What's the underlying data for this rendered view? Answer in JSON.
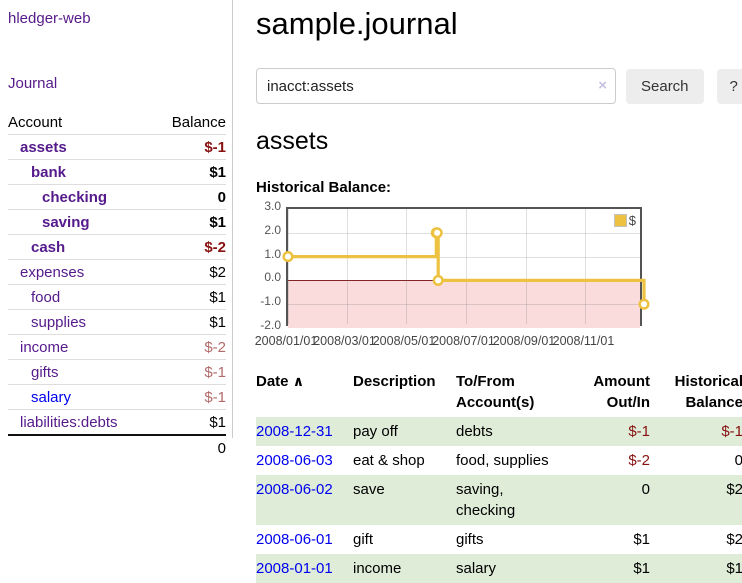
{
  "app": {
    "brand": "hledger-web",
    "nav": {
      "journal": "Journal"
    }
  },
  "sidebar": {
    "header": {
      "account": "Account",
      "balance": "Balance"
    },
    "accounts": [
      {
        "name": "assets",
        "balance": "$-1"
      },
      {
        "name": "bank",
        "balance": "$1"
      },
      {
        "name": "checking",
        "balance": "0"
      },
      {
        "name": "saving",
        "balance": "$1"
      },
      {
        "name": "cash",
        "balance": "$-2"
      },
      {
        "name": "expenses",
        "balance": "$2"
      },
      {
        "name": "food",
        "balance": "$1"
      },
      {
        "name": "supplies",
        "balance": "$1"
      },
      {
        "name": "income",
        "balance": "$-2"
      },
      {
        "name": "gifts",
        "balance": "$-1"
      },
      {
        "name": "salary",
        "balance": "$-1"
      },
      {
        "name": "liabilities:debts",
        "balance": "$1"
      }
    ],
    "total": "0"
  },
  "header": {
    "title": "sample.journal"
  },
  "search": {
    "query": "inacct:assets",
    "clear_icon": "×",
    "button_label": "Search",
    "help_label": "?"
  },
  "account_page": {
    "heading": "assets",
    "chart_label": "Historical Balance:"
  },
  "chart_data": {
    "type": "line",
    "step": true,
    "title": "Historical Balance",
    "series": [
      {
        "name": "$",
        "color": "#edc240",
        "points": [
          [
            "2008-01-01",
            1
          ],
          [
            "2008-06-01",
            2
          ],
          [
            "2008-06-02",
            2
          ],
          [
            "2008-06-03",
            0
          ],
          [
            "2008-12-31",
            -1
          ]
        ]
      }
    ],
    "xlim": [
      "2008-01-01",
      "2008-12-31"
    ],
    "ylim": [
      -2,
      3
    ],
    "y_ticks": [
      {
        "v": 3,
        "label": "3.0"
      },
      {
        "v": 2,
        "label": "2.0"
      },
      {
        "v": 1,
        "label": "1.0"
      },
      {
        "v": 0,
        "label": "0.0"
      },
      {
        "v": -1,
        "label": "-1.0"
      },
      {
        "v": -2,
        "label": "-2.0"
      }
    ],
    "x_ticks": [
      {
        "date": "2008-01-01",
        "label": "2008/01/01"
      },
      {
        "date": "2008-03-01",
        "label": "2008/03/01"
      },
      {
        "date": "2008-05-01",
        "label": "2008/05/01"
      },
      {
        "date": "2008-07-01",
        "label": "2008/07/01"
      },
      {
        "date": "2008-09-01",
        "label": "2008/09/01"
      },
      {
        "date": "2008-11-01",
        "label": "2008/11/01"
      }
    ],
    "negative_region_below": 0,
    "legend_position": "top-right",
    "grid": true
  },
  "register": {
    "sort_icon": "∧",
    "columns": {
      "date": "Date",
      "description": "Description",
      "accounts": "To/From Account(s)",
      "amount": "Amount Out/In",
      "balance": "Historical Balance"
    },
    "rows": [
      {
        "date": "2008-12-31",
        "description": "pay off",
        "accounts": "debts",
        "amount": "$-1",
        "balance": "$-1"
      },
      {
        "date": "2008-06-03",
        "description": "eat & shop",
        "accounts": "food, supplies",
        "amount": "$-2",
        "balance": "0"
      },
      {
        "date": "2008-06-02",
        "description": "save",
        "accounts": "saving, checking",
        "amount": "0",
        "balance": "$2"
      },
      {
        "date": "2008-06-01",
        "description": "gift",
        "accounts": "gifts",
        "amount": "$1",
        "balance": "$2"
      },
      {
        "date": "2008-01-01",
        "description": "income",
        "accounts": "salary",
        "amount": "$1",
        "balance": "$1"
      }
    ]
  }
}
